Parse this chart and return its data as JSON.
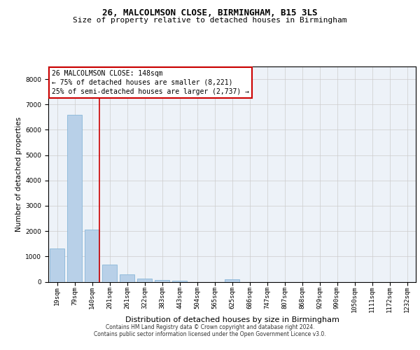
{
  "title1": "26, MALCOLMSON CLOSE, BIRMINGHAM, B15 3LS",
  "title2": "Size of property relative to detached houses in Birmingham",
  "xlabel": "Distribution of detached houses by size in Birmingham",
  "ylabel": "Number of detached properties",
  "bar_color": "#b8d0e8",
  "bar_edge_color": "#7aafd4",
  "categories": [
    "19sqm",
    "79sqm",
    "140sqm",
    "201sqm",
    "261sqm",
    "322sqm",
    "383sqm",
    "443sqm",
    "504sqm",
    "565sqm",
    "625sqm",
    "686sqm",
    "747sqm",
    "807sqm",
    "868sqm",
    "929sqm",
    "990sqm",
    "1050sqm",
    "1111sqm",
    "1172sqm",
    "1232sqm"
  ],
  "values": [
    1300,
    6580,
    2060,
    680,
    290,
    115,
    70,
    50,
    0,
    0,
    95,
    0,
    0,
    0,
    0,
    0,
    0,
    0,
    0,
    0,
    0
  ],
  "ylim": [
    0,
    8500
  ],
  "yticks": [
    0,
    1000,
    2000,
    3000,
    4000,
    5000,
    6000,
    7000,
    8000
  ],
  "property_bin_index": 2,
  "annotation_line1": "26 MALCOLMSON CLOSE: 148sqm",
  "annotation_line2": "← 75% of detached houses are smaller (8,221)",
  "annotation_line3": "25% of semi-detached houses are larger (2,737) →",
  "annotation_box_facecolor": "#ffffff",
  "annotation_box_edgecolor": "#cc0000",
  "footer1": "Contains HM Land Registry data © Crown copyright and database right 2024.",
  "footer2": "Contains public sector information licensed under the Open Government Licence v3.0.",
  "bg_color": "#edf2f8",
  "grid_color": "#cccccc",
  "title1_fontsize": 9,
  "title2_fontsize": 8,
  "ylabel_fontsize": 7.5,
  "xlabel_fontsize": 8,
  "tick_fontsize": 6.5,
  "annotation_fontsize": 7,
  "footer_fontsize": 5.5
}
